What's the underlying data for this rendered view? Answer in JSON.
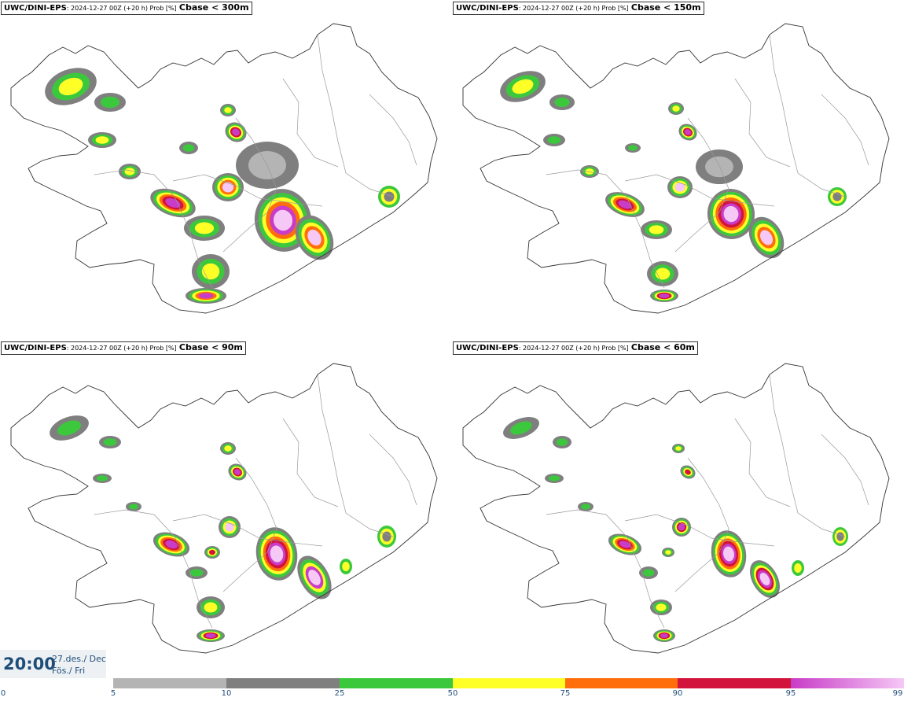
{
  "panels": [
    {
      "model": "UWC/DINI-EPS",
      "meta": ": 2024-12-27 00Z (+20 h) Prob [%]",
      "variable": "Cbase < 300m"
    },
    {
      "model": "UWC/DINI-EPS",
      "meta": ": 2024-12-27 00Z (+20 h) Prob [%]",
      "variable": "Cbase < 150m"
    },
    {
      "model": "UWC/DINI-EPS",
      "meta": ": 2024-12-27 00Z (+20 h) Prob [%]",
      "variable": "Cbase < 90m"
    },
    {
      "model": "UWC/DINI-EPS",
      "meta": ": 2024-12-27 00Z (+20 h) Prob [%]",
      "variable": "Cbase < 60m"
    }
  ],
  "valid_time": {
    "time": "20:00",
    "date_line1": "27.des./ Dec",
    "date_line2": "Fös./ Fri"
  },
  "colorbar": {
    "labels": [
      "0",
      "5",
      "10",
      "25",
      "50",
      "75",
      "90",
      "95",
      "99"
    ],
    "classes": [
      {
        "from": 5,
        "to": 10,
        "color": "#b4b4b4"
      },
      {
        "from": 10,
        "to": 25,
        "color": "#7f7f7f"
      },
      {
        "from": 25,
        "to": 50,
        "color": "#3cc83c"
      },
      {
        "from": 50,
        "to": 75,
        "color": "#ffff28"
      },
      {
        "from": 75,
        "to": 90,
        "color": "#ff6e0a"
      },
      {
        "from": 90,
        "to": 95,
        "color": "#d2143c"
      },
      {
        "from": 95,
        "to": 99,
        "color": "#c83cc8",
        "to_color": "#f5c8f5"
      }
    ]
  }
}
